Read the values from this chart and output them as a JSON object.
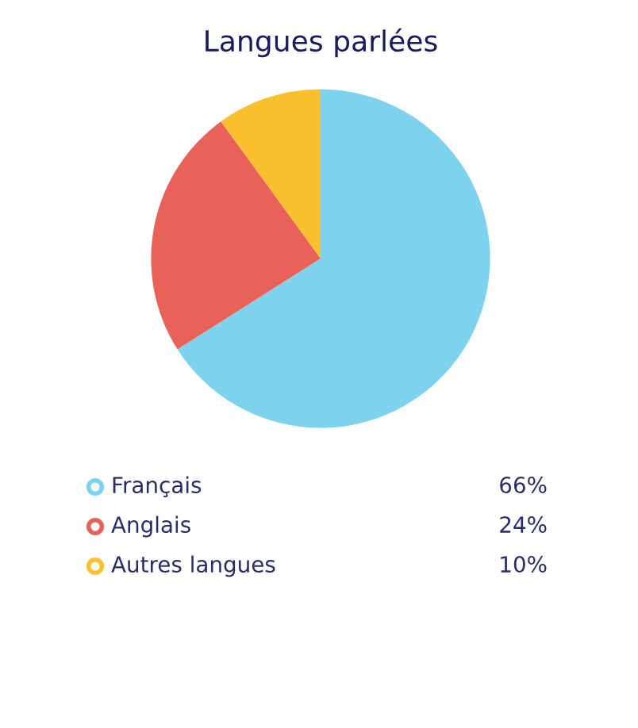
{
  "chart_data": {
    "type": "pie",
    "title": "Langues parlées",
    "categories": [
      "Français",
      "Anglais",
      "Autres langues"
    ],
    "values": [
      66,
      24,
      10
    ],
    "colors": [
      "#7dd3ee",
      "#e8625a",
      "#fbc02d"
    ],
    "value_labels": [
      "66%",
      "24%",
      "10%"
    ],
    "legend": "bottom"
  }
}
